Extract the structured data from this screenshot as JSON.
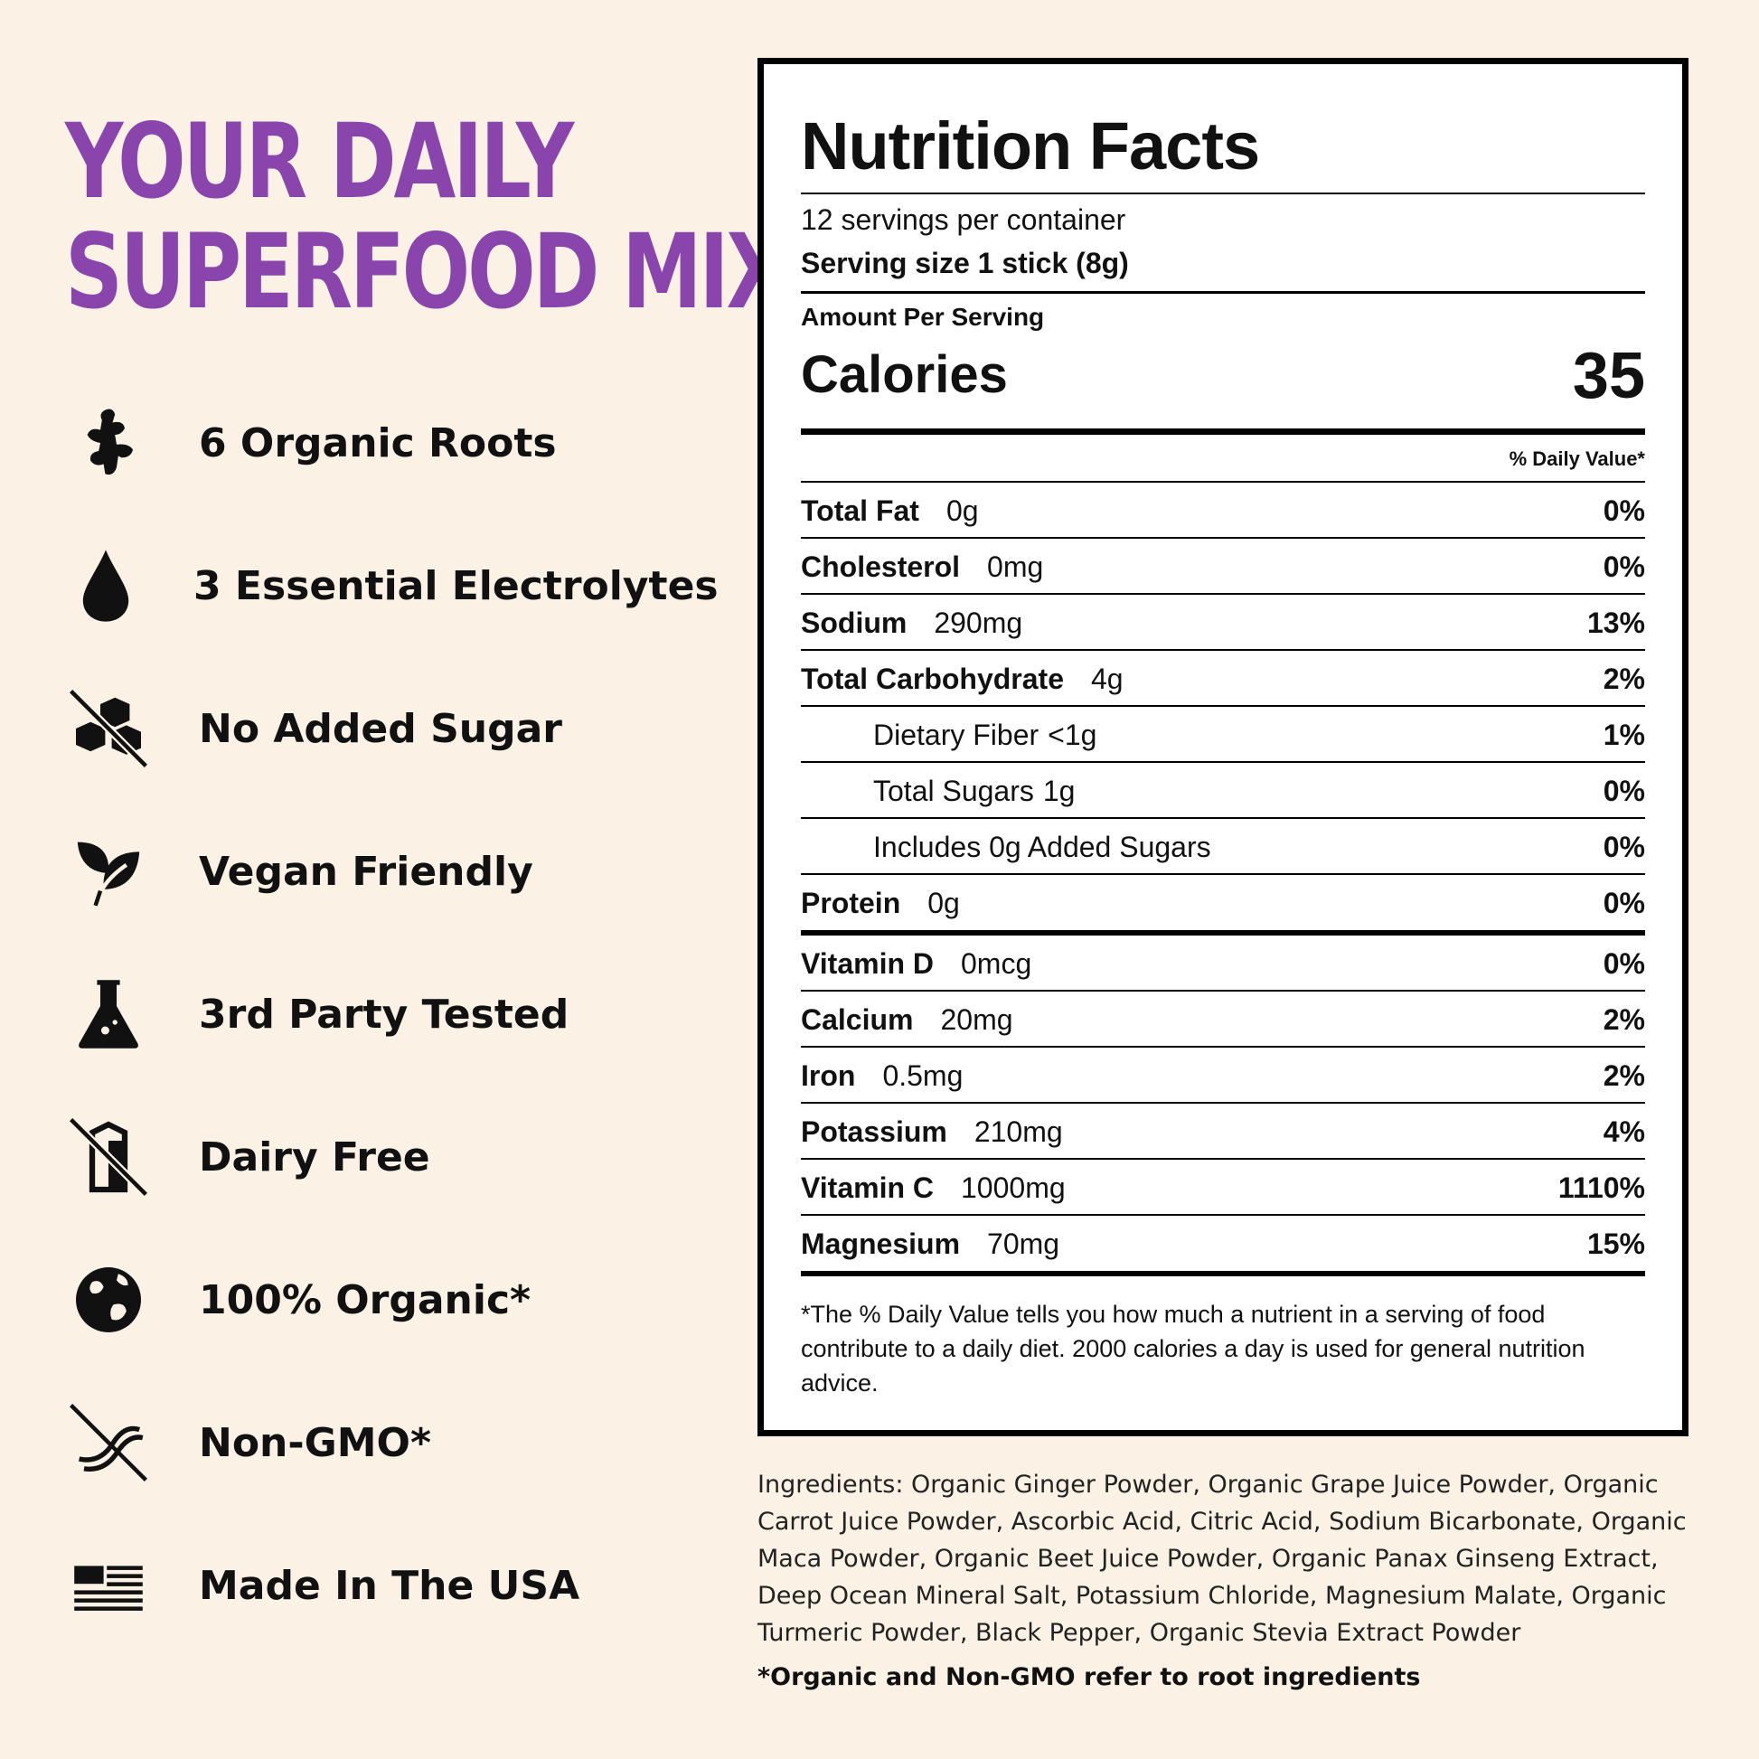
{
  "headline": {
    "line1": "YOUR DAILY",
    "line2": "SUPERFOOD MIX"
  },
  "features": [
    {
      "icon": "ginger-root-icon",
      "label": "6 Organic Roots"
    },
    {
      "icon": "water-drop-icon",
      "label": "3 Essential Electrolytes"
    },
    {
      "icon": "no-sugar-cubes-icon",
      "label": "No Added Sugar"
    },
    {
      "icon": "leaf-icon",
      "label": "Vegan Friendly"
    },
    {
      "icon": "lab-flask-icon",
      "label": "3rd Party Tested"
    },
    {
      "icon": "no-milk-carton-icon",
      "label": "Dairy Free"
    },
    {
      "icon": "globe-icon",
      "label": "100% Organic*"
    },
    {
      "icon": "no-dna-icon",
      "label": "Non-GMO*"
    },
    {
      "icon": "us-flag-icon",
      "label": "Made In The USA"
    }
  ],
  "nutrition": {
    "title": "Nutrition Facts",
    "servings_per_container": "12 servings per container",
    "serving_size": "Serving size 1 stick (8g)",
    "amount_per_serving": "Amount Per Serving",
    "calories_label": "Calories",
    "calories_value": "35",
    "dv_header": "% Daily Value*",
    "rows": [
      {
        "name": "Total Fat",
        "amount": "0g",
        "dv": "0%"
      },
      {
        "name": "Cholesterol",
        "amount": "0mg",
        "dv": "0%"
      },
      {
        "name": "Sodium",
        "amount": "290mg",
        "dv": "13%"
      },
      {
        "name": "Total Carbohydrate",
        "amount": "4g",
        "dv": "2%"
      },
      {
        "name": "Dietary Fiber",
        "amount": "<1g",
        "dv": "1%"
      },
      {
        "name": "Total Sugars",
        "amount": "1g",
        "dv": "0%"
      },
      {
        "name": "Includes 0g Added Sugars",
        "amount": "",
        "dv": "0%"
      },
      {
        "name": "Protein",
        "amount": "0g",
        "dv": "0%"
      },
      {
        "name": "Vitamin D",
        "amount": "0mcg",
        "dv": "0%"
      },
      {
        "name": "Calcium",
        "amount": "20mg",
        "dv": "2%"
      },
      {
        "name": "Iron",
        "amount": "0.5mg",
        "dv": "2%"
      },
      {
        "name": "Potassium",
        "amount": "210mg",
        "dv": "4%"
      },
      {
        "name": "Vitamin C",
        "amount": "1000mg",
        "dv": "1110%"
      },
      {
        "name": "Magnesium",
        "amount": "70mg",
        "dv": "15%"
      }
    ],
    "footnote": "*The % Daily Value tells you how much a nutrient in a serving of food contribute to a daily diet. 2000 calories a day is used for general nutrition advice."
  },
  "ingredients": "Ingredients: Organic Ginger Powder, Organic Grape Juice Powder, Organic Carrot Juice Powder, Ascorbic Acid, Citric Acid, Sodium Bicarbonate, Organic Maca Powder, Organic Beet Juice Powder, Organic Panax Ginseng Extract, Deep Ocean Mineral Salt, Potassium Chloride, Magnesium Malate, Organic Turmeric Powder, Black Pepper, Organic Stevia Extract Powder",
  "organic_note": "*Organic and Non-GMO refer to root ingredients",
  "colors": {
    "background": "#fbf1e4",
    "headline": "#8a45ad",
    "text": "#111111"
  }
}
